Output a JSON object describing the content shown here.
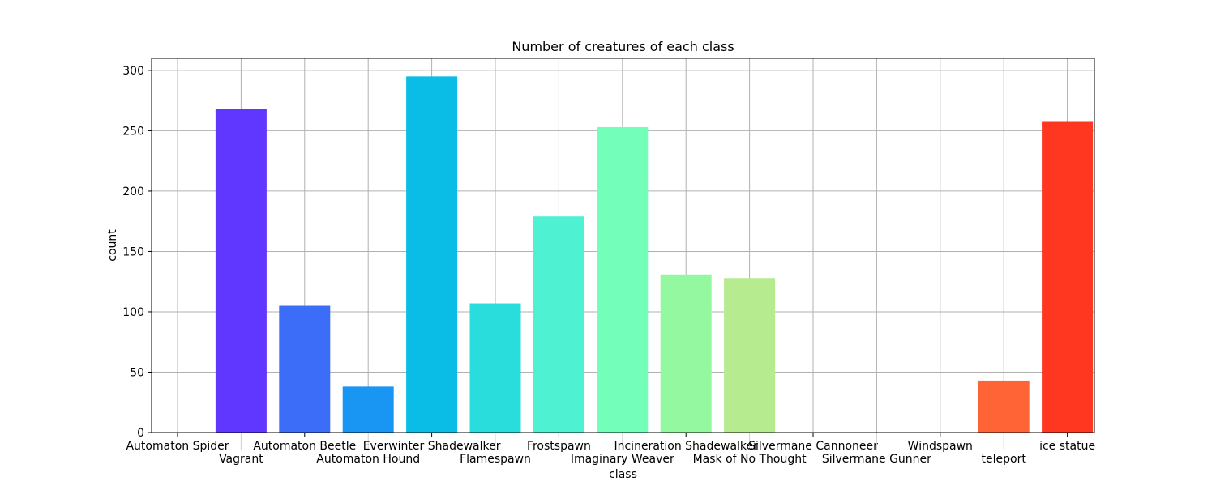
{
  "chart_data": {
    "type": "bar",
    "title": "Number of creatures of each class",
    "xlabel": "class",
    "ylabel": "count",
    "ylim": [
      0,
      310
    ],
    "yticks": [
      0,
      50,
      100,
      150,
      200,
      250,
      300
    ],
    "grid": true,
    "categories": [
      "Automaton Spider",
      "Vagrant",
      "Automaton Beetle",
      "Automaton Hound",
      "Everwinter Shadewalker",
      "Flamespawn",
      "Frostspawn",
      "Imaginary Weaver",
      "Incineration Shadewalker",
      "Mask of No Thought",
      "Silvermane Cannoneer",
      "Silvermane Gunner",
      "Windspawn",
      "teleport",
      "ice statue"
    ],
    "values": [
      0,
      268,
      105,
      38,
      295,
      107,
      179,
      253,
      131,
      128,
      0,
      0,
      0,
      43,
      258
    ],
    "colors": [
      "#8000ff",
      "#5f37ff",
      "#3c6df9",
      "#1996f3",
      "#0abde6",
      "#2adddd",
      "#4ef2d2",
      "#73ffb9",
      "#94f8a0",
      "#b6eb90",
      "#d9d37c",
      "#ffb360",
      "#ff8d4b",
      "#ff6437",
      "#ff3620"
    ]
  }
}
